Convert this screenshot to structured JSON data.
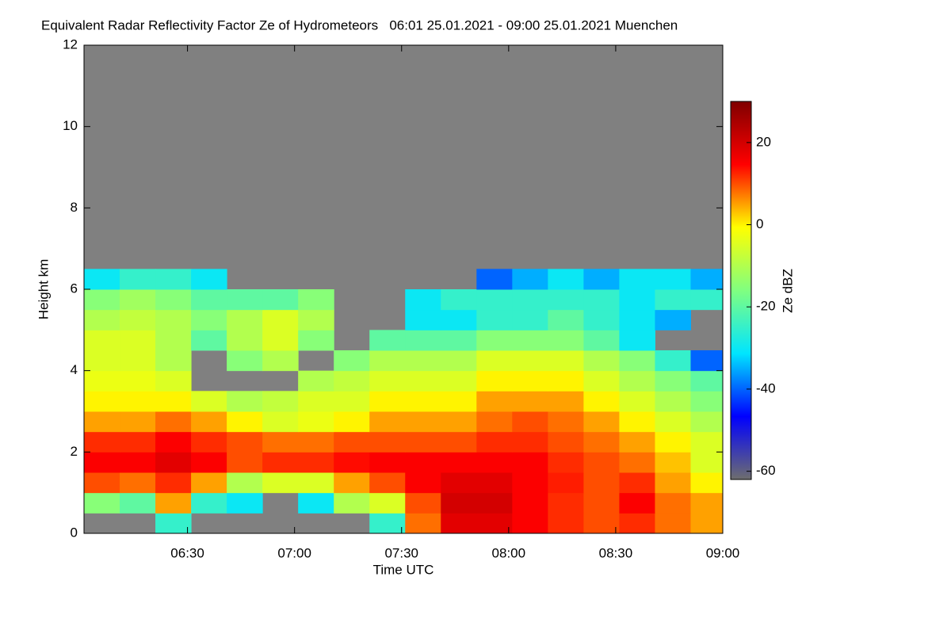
{
  "chart_data": {
    "type": "heatmap",
    "title": "Equivalent Radar Reflectivity Factor Ze of Hydrometeors   06:01 25.01.2021 - 09:00 25.01.2021 Muenchen",
    "xlabel": "Time UTC",
    "ylabel": "Height km",
    "colorbar_label": "Ze dBZ",
    "x": [
      6,
      16,
      26,
      36,
      46,
      56,
      66,
      76,
      86,
      96,
      106,
      116,
      126,
      136,
      146,
      156,
      166,
      176
    ],
    "y": [
      0.25,
      0.75,
      1.25,
      1.75,
      2.25,
      2.75,
      3.25,
      3.75,
      4.25,
      4.75,
      5.25,
      5.75,
      6.25
    ],
    "z": [
      [
        null,
        null,
        -25,
        null,
        null,
        null,
        null,
        null,
        -25,
        8,
        18,
        18,
        15,
        12,
        10,
        12,
        8,
        5
      ],
      [
        -15,
        -20,
        5,
        -25,
        -30,
        null,
        -30,
        -10,
        -5,
        10,
        20,
        20,
        15,
        12,
        10,
        15,
        8,
        5
      ],
      [
        10,
        8,
        12,
        5,
        -10,
        -5,
        -5,
        5,
        10,
        15,
        18,
        18,
        15,
        13,
        10,
        12,
        5,
        0
      ],
      [
        15,
        15,
        18,
        15,
        10,
        12,
        12,
        14,
        15,
        15,
        15,
        15,
        15,
        12,
        10,
        8,
        3,
        -5
      ],
      [
        12,
        12,
        15,
        12,
        10,
        8,
        8,
        10,
        10,
        10,
        10,
        12,
        12,
        10,
        8,
        5,
        0,
        -5
      ],
      [
        5,
        5,
        8,
        5,
        0,
        -5,
        -3,
        0,
        5,
        5,
        5,
        8,
        10,
        8,
        5,
        0,
        -5,
        -10
      ],
      [
        0,
        0,
        0,
        -5,
        -10,
        -8,
        -5,
        -5,
        0,
        0,
        0,
        5,
        5,
        5,
        0,
        -5,
        -10,
        -15
      ],
      [
        -3,
        -3,
        -5,
        null,
        null,
        null,
        -10,
        -8,
        -5,
        -5,
        -5,
        0,
        0,
        0,
        -5,
        -10,
        -15,
        -20
      ],
      [
        -5,
        -5,
        -10,
        null,
        -15,
        -10,
        null,
        -15,
        -10,
        -10,
        -10,
        -5,
        -5,
        -5,
        -10,
        -15,
        -25,
        -40
      ],
      [
        -5,
        -5,
        -10,
        -20,
        -10,
        -5,
        -15,
        null,
        -20,
        -20,
        -20,
        -15,
        -15,
        -15,
        -20,
        -30,
        null,
        null
      ],
      [
        -10,
        -8,
        -10,
        -15,
        -10,
        -5,
        -10,
        null,
        null,
        -30,
        -30,
        -25,
        -25,
        -20,
        -25,
        -30,
        -35,
        null
      ],
      [
        -15,
        -12,
        -15,
        -20,
        -20,
        -20,
        -15,
        null,
        null,
        -30,
        -25,
        -25,
        -25,
        -25,
        -25,
        -30,
        -25,
        -25
      ],
      [
        -30,
        -25,
        -25,
        -30,
        null,
        null,
        null,
        null,
        null,
        null,
        null,
        -40,
        -35,
        -30,
        -35,
        -30,
        -30,
        -35
      ]
    ],
    "xlim": [
      1,
      180
    ],
    "xticks": [
      {
        "value": 30,
        "label": "06:30"
      },
      {
        "value": 60,
        "label": "07:00"
      },
      {
        "value": 90,
        "label": "07:30"
      },
      {
        "value": 120,
        "label": "08:00"
      },
      {
        "value": 150,
        "label": "08:30"
      },
      {
        "value": 180,
        "label": "09:00"
      }
    ],
    "ylim": [
      0,
      12
    ],
    "yticks": [
      0,
      2,
      4,
      6,
      8,
      10,
      12
    ],
    "zlim": [
      -62,
      30
    ],
    "zticks": [
      -60,
      -40,
      -20,
      0,
      20
    ],
    "colormap": [
      "#6e6e6e",
      "#0000ff",
      "#00e5ff",
      "#80ff80",
      "#ffff00",
      "#ff0000",
      "#800000"
    ],
    "no_data_color": "#808080"
  }
}
